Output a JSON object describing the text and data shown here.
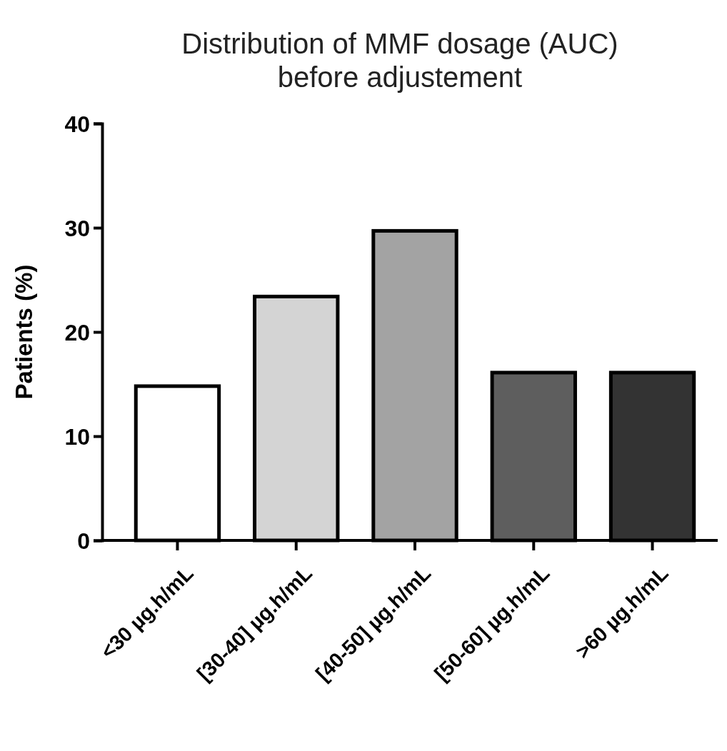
{
  "chart_data": {
    "type": "bar",
    "title": "Distribution of MMF dosage (AUC)\nbefore adjustement",
    "ylabel": "Patients (%)",
    "categories": [
      "<30 µg.h/mL",
      "[30-40] µg.h/mL",
      "[40-50] µg.h/mL",
      "[50-60] µg.h/mL",
      ">60 µg.h/mL"
    ],
    "values": [
      14.8,
      23.4,
      29.7,
      16.1,
      16.1
    ],
    "colors": [
      "#ffffff",
      "#d4d4d4",
      "#a3a3a3",
      "#5e5e5e",
      "#333333"
    ],
    "ylim": [
      0,
      40
    ],
    "yticks": [
      0,
      10,
      20,
      30,
      40
    ],
    "grid": false
  }
}
